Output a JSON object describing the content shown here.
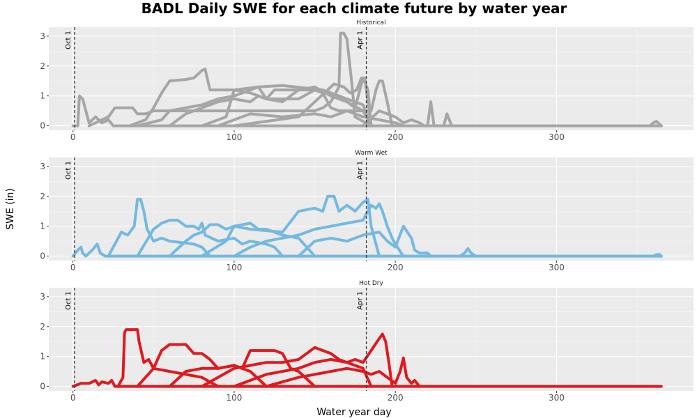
{
  "chart_data": {
    "type": "line",
    "title": "BADL Daily SWE for each climate future by water year",
    "xlabel": "Water year day",
    "ylabel": "SWE (in)",
    "xlim": [
      -15,
      385
    ],
    "ylim": [
      -0.15,
      3.3
    ],
    "x_ticks": [
      0,
      100,
      200,
      300
    ],
    "y_ticks": [
      0,
      1,
      2,
      3
    ],
    "grid": true,
    "reference_lines": [
      {
        "x": 1,
        "label": "Oct 1"
      },
      {
        "x": 182,
        "label": "Apr 1"
      }
    ],
    "panels": [
      {
        "name": "Historical",
        "color": "#a6a6a6",
        "series": [
          {
            "x": [
              0,
              3,
              4,
              6,
              10,
              14,
              18,
              22,
              25,
              365
            ],
            "y": [
              0,
              0,
              1.0,
              0.9,
              0.1,
              0.3,
              0.1,
              0.2,
              0,
              0
            ]
          },
          {
            "x": [
              10,
              22,
              26,
              30,
              37,
              40,
              45,
              50,
              150,
              155,
              160,
              165,
              166,
              168,
              170,
              173,
              175,
              185
            ],
            "y": [
              0,
              0.3,
              0.6,
              0.6,
              0.6,
              0.4,
              0.4,
              0.5,
              0.5,
              0.6,
              0.8,
              1.3,
              3.1,
              3.1,
              2.9,
              1.4,
              0.3,
              0
            ]
          },
          {
            "x": [
              35,
              45,
              50,
              55,
              60,
              70,
              75,
              80,
              82,
              85,
              100,
              115,
              130,
              155,
              165,
              180,
              185
            ],
            "y": [
              0,
              0.2,
              0.6,
              1.1,
              1.5,
              1.55,
              1.6,
              1.85,
              1.9,
              1.2,
              1.2,
              1.3,
              1.35,
              1.2,
              1.0,
              0.7,
              0
            ]
          },
          {
            "x": [
              40,
              55,
              60,
              80,
              90,
              100,
              110,
              115,
              120,
              125,
              150,
              160,
              165,
              170,
              175,
              180,
              183,
              185
            ],
            "y": [
              0,
              0.2,
              0.5,
              0.7,
              0.9,
              1.0,
              1.2,
              1.3,
              0.9,
              1.2,
              1.2,
              1.1,
              1.0,
              0.8,
              0.6,
              1.6,
              1.2,
              0
            ]
          },
          {
            "x": [
              60,
              70,
              80,
              90,
              100,
              110,
              115,
              120,
              140,
              150,
              155,
              160,
              165,
              185,
              188,
              190,
              192,
              195,
              198
            ],
            "y": [
              0,
              0.4,
              0.6,
              0.8,
              0.9,
              0.8,
              1.0,
              0.9,
              0.9,
              1.2,
              1.1,
              0.6,
              0.5,
              0.5,
              1.2,
              1.5,
              1.5,
              0.8,
              0
            ]
          },
          {
            "x": [
              80,
              95,
              100,
              110,
              120,
              130,
              140,
              150,
              160,
              170,
              180,
              185
            ],
            "y": [
              0,
              0.3,
              1.2,
              1.1,
              0.9,
              0.8,
              1.2,
              1.3,
              1.0,
              0.8,
              0.5,
              0
            ]
          },
          {
            "x": [
              90,
              100,
              110,
              130,
              150,
              160,
              170,
              180,
              190,
              200,
              205
            ],
            "y": [
              0,
              0.2,
              0.4,
              0.3,
              0.4,
              0.3,
              0.5,
              0.3,
              0.2,
              0.1,
              0
            ]
          },
          {
            "x": [
              100,
              140,
              158,
              162,
              168,
              172,
              176,
              179,
              181,
              185
            ],
            "y": [
              0,
              0.3,
              1.2,
              1.4,
              1.3,
              1.1,
              1.2,
              1.6,
              1.6,
              0
            ]
          },
          {
            "x": [
              180,
              190,
              195,
              200,
              205,
              210,
              215,
              218,
              220,
              222,
              224,
              228,
              230,
              232,
              235
            ],
            "y": [
              0,
              0.5,
              0.4,
              0.3,
              0.1,
              0.2,
              0.1,
              0,
              0,
              0.8,
              0,
              0,
              0,
              0.4,
              0
            ]
          },
          {
            "x": [
              358,
              360,
              362,
              363,
              365
            ],
            "y": [
              0,
              0.1,
              0.15,
              0.1,
              0
            ]
          }
        ]
      },
      {
        "name": "Warm Wet",
        "color": "#74b9e0",
        "series": [
          {
            "x": [
              0,
              3,
              5,
              6,
              8,
              12,
              15,
              17,
              20,
              365
            ],
            "y": [
              0,
              0.2,
              0.3,
              0.1,
              0,
              0.2,
              0.4,
              0.1,
              0,
              0
            ]
          },
          {
            "x": [
              22,
              26,
              30,
              34,
              38,
              40,
              42,
              44,
              46,
              50,
              55,
              60,
              75,
              80,
              85
            ],
            "y": [
              0,
              0.4,
              0.8,
              0.7,
              1.0,
              1.9,
              1.9,
              1.5,
              0.9,
              0.5,
              0.6,
              0.5,
              0.4,
              0.3,
              0
            ]
          },
          {
            "x": [
              40,
              50,
              55,
              60,
              65,
              70,
              75,
              78,
              80,
              82,
              90,
              100,
              105,
              110,
              120,
              125,
              130
            ],
            "y": [
              0,
              0.9,
              1.1,
              1.2,
              1.2,
              1.0,
              1.0,
              0.9,
              1.1,
              0.7,
              0.5,
              0.6,
              0.4,
              0.5,
              0.4,
              0.3,
              0
            ]
          },
          {
            "x": [
              60,
              70,
              75,
              80,
              85,
              90,
              95,
              100,
              110,
              115,
              120,
              130,
              140,
              150
            ],
            "y": [
              0,
              0.5,
              0.7,
              0.8,
              1.05,
              1.05,
              0.9,
              1.0,
              1.1,
              0.9,
              0.9,
              0.7,
              0.6,
              0
            ]
          },
          {
            "x": [
              80,
              95,
              100,
              110,
              130,
              140,
              150,
              155,
              158,
              162,
              165,
              170,
              175,
              180,
              183,
              185,
              190
            ],
            "y": [
              0,
              0.5,
              1.0,
              0.9,
              0.8,
              1.5,
              1.6,
              1.5,
              2.0,
              2.0,
              1.5,
              1.7,
              1.5,
              1.8,
              1.9,
              1.0,
              0
            ]
          },
          {
            "x": [
              100,
              110,
              120,
              130,
              140,
              150,
              160,
              170,
              180,
              185,
              188,
              190,
              192,
              195,
              198,
              200,
              205
            ],
            "y": [
              0,
              0.3,
              0.5,
              0.6,
              0.7,
              0.9,
              1.0,
              1.1,
              1.2,
              1.7,
              1.6,
              1.75,
              1.5,
              1.0,
              0.6,
              0.4,
              0
            ]
          },
          {
            "x": [
              140,
              150,
              160,
              170,
              180,
              190,
              195,
              200,
              205,
              210,
              212,
              215,
              220,
              222,
              225
            ],
            "y": [
              0,
              0.5,
              0.6,
              0.5,
              0.7,
              0.8,
              0.5,
              0.3,
              1.0,
              0.6,
              0.2,
              0.1,
              0.1,
              0,
              0
            ]
          },
          {
            "x": [
              240,
              243,
              245,
              247,
              250
            ],
            "y": [
              0,
              0.1,
              0.25,
              0.1,
              0
            ]
          },
          {
            "x": [
              360,
              362,
              364,
              365
            ],
            "y": [
              0,
              0.05,
              0.05,
              0
            ]
          }
        ]
      },
      {
        "name": "Hot Dry",
        "color": "#e0191e",
        "series": [
          {
            "x": [
              0,
              5,
              10,
              14,
              16,
              18,
              22,
              24,
              26,
              365
            ],
            "y": [
              0,
              0.1,
              0.1,
              0.2,
              0.05,
              0.15,
              0.1,
              0.2,
              0,
              0
            ]
          },
          {
            "x": [
              28,
              31,
              32,
              33,
              40,
              41,
              44,
              47,
              50,
              60,
              70,
              80,
              90
            ],
            "y": [
              0,
              0.3,
              1.8,
              1.9,
              1.9,
              1.5,
              0.8,
              0.9,
              0.6,
              0.5,
              0.4,
              0.3,
              0
            ]
          },
          {
            "x": [
              40,
              50,
              55,
              60,
              70,
              75,
              80,
              85,
              90,
              100,
              110,
              120
            ],
            "y": [
              0,
              0.6,
              1.2,
              1.4,
              1.4,
              1.1,
              1.1,
              0.9,
              0.6,
              0.7,
              0.5,
              0
            ]
          },
          {
            "x": [
              60,
              70,
              80,
              90,
              100,
              105,
              110,
              115,
              120,
              125,
              130,
              135,
              140,
              150
            ],
            "y": [
              0,
              0.5,
              0.6,
              0.6,
              0.7,
              0.6,
              1.2,
              1.2,
              1.2,
              1.2,
              1.1,
              0.6,
              0.5,
              0
            ]
          },
          {
            "x": [
              80,
              100,
              110,
              120,
              130,
              140,
              150,
              155,
              160,
              165,
              170,
              175,
              180,
              185
            ],
            "y": [
              0,
              0.6,
              0.7,
              0.8,
              0.8,
              0.9,
              1.3,
              1.2,
              1.1,
              0.9,
              0.8,
              0.7,
              0.6,
              0
            ]
          },
          {
            "x": [
              100,
              120,
              140,
              150,
              160,
              170,
              175,
              180,
              185,
              190,
              192,
              194,
              196,
              198
            ],
            "y": [
              0,
              0.4,
              0.6,
              0.8,
              0.9,
              0.8,
              0.9,
              0.8,
              1.2,
              1.6,
              1.75,
              1.5,
              0.8,
              0
            ]
          },
          {
            "x": [
              120,
              140,
              160,
              170,
              180,
              185,
              190,
              195,
              200,
              203,
              205,
              207,
              210,
              212,
              215
            ],
            "y": [
              0,
              0.3,
              0.5,
              0.6,
              0.5,
              0.4,
              0.5,
              0.3,
              0.1,
              0.5,
              0.95,
              0.3,
              0.1,
              0.2,
              0
            ]
          }
        ]
      }
    ]
  }
}
